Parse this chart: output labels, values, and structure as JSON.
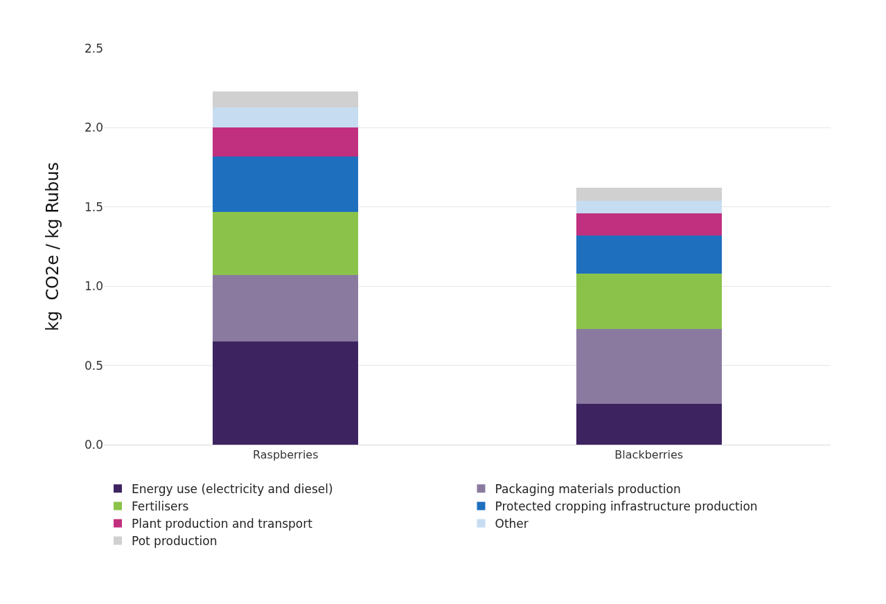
{
  "chart_data": {
    "type": "bar",
    "stacked": true,
    "ylabel": "kg  CO2e / kg Rubus",
    "categories": [
      "Raspberries",
      "Blackberries"
    ],
    "series": [
      {
        "name": "Energy use (electricity and diesel)",
        "color": "#3d2461",
        "values": [
          0.65,
          0.26
        ]
      },
      {
        "name": "Packaging materials production",
        "color": "#8a7aa0",
        "values": [
          0.42,
          0.47
        ]
      },
      {
        "name": "Fertilisers",
        "color": "#8bc34a",
        "values": [
          0.4,
          0.35
        ]
      },
      {
        "name": "Protected cropping infrastructure production",
        "color": "#1f6fbf",
        "values": [
          0.35,
          0.24
        ]
      },
      {
        "name": "Plant production and transport",
        "color": "#c0307f",
        "values": [
          0.18,
          0.14
        ]
      },
      {
        "name": "Other",
        "color": "#c6dcf0",
        "values": [
          0.13,
          0.08
        ]
      },
      {
        "name": "Pot production",
        "color": "#d0d0d0",
        "values": [
          0.1,
          0.08
        ]
      }
    ],
    "ylim": [
      0,
      2.5
    ],
    "yticks": [
      {
        "value": 0,
        "label": "0.0"
      },
      {
        "value": 0.5,
        "label": "0.5"
      },
      {
        "value": 1,
        "label": "1.0"
      },
      {
        "value": 1.5,
        "label": "1.5"
      },
      {
        "value": 2,
        "label": "2.0"
      },
      {
        "value": 2.5,
        "label": "2.5"
      }
    ],
    "grid": "y",
    "legend": "bottom"
  }
}
